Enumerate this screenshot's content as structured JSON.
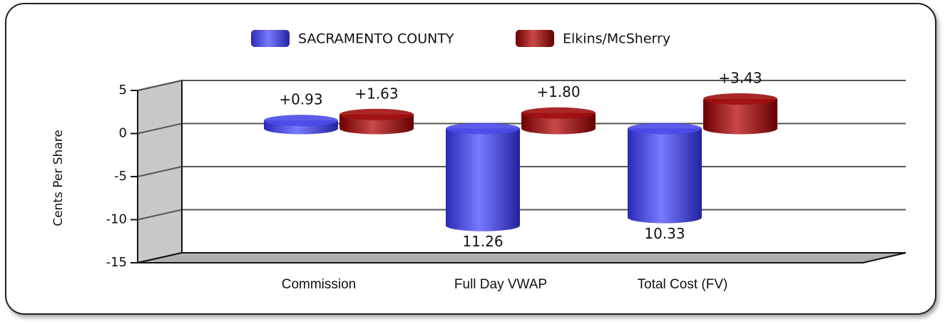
{
  "chart_data": {
    "type": "bar",
    "y_label": "Cents Per Share",
    "categories": [
      "Commission",
      "Full Day VWAP",
      "Total Cost (FV)"
    ],
    "series": [
      {
        "name": "SACRAMENTO COUNTY",
        "color": "#4a4ae8",
        "values": [
          0.93,
          -11.26,
          -10.33
        ],
        "value_labels": [
          "+0.93",
          "11.26",
          "10.33"
        ]
      },
      {
        "name": "Elkins/McSherry",
        "color": "#a01010",
        "values": [
          1.63,
          1.8,
          3.43
        ],
        "value_labels": [
          "+1.63",
          "+1.80",
          "+3.43"
        ]
      }
    ],
    "ylim": [
      -15,
      5
    ],
    "yticks": [
      -15,
      -10,
      -5,
      0,
      5
    ],
    "grid": true,
    "legend": "top"
  }
}
